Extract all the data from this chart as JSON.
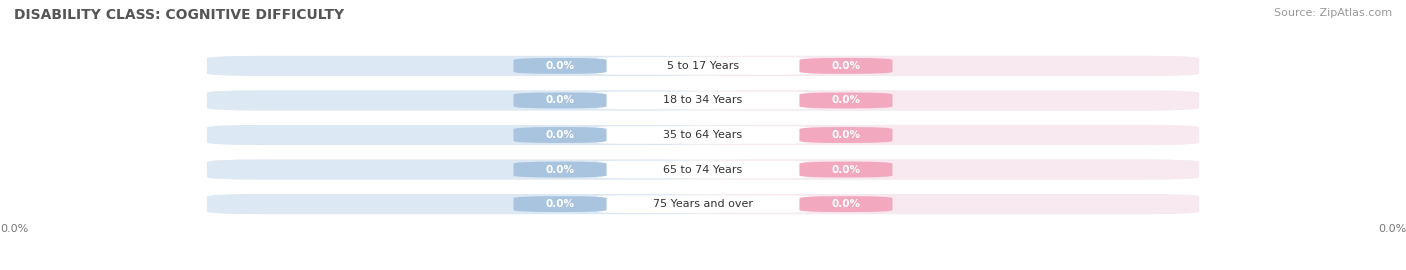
{
  "title": "DISABILITY CLASS: COGNITIVE DIFFICULTY",
  "source": "Source: ZipAtlas.com",
  "categories": [
    "5 to 17 Years",
    "18 to 34 Years",
    "35 to 64 Years",
    "65 to 74 Years",
    "75 Years and over"
  ],
  "male_values": [
    0.0,
    0.0,
    0.0,
    0.0,
    0.0
  ],
  "female_values": [
    0.0,
    0.0,
    0.0,
    0.0,
    0.0
  ],
  "male_color": "#a8c4de",
  "female_color": "#f2a8be",
  "row_bg_color": "#eeeeee",
  "row_bg_left_color": "#dce8f4",
  "row_bg_right_color": "#f8e8ef",
  "title_color": "#555555",
  "source_color": "#999999",
  "cat_label_color": "#333333",
  "axis_label_color": "#777777",
  "background_color": "#ffffff",
  "title_fontsize": 10,
  "source_fontsize": 8,
  "bar_label_fontsize": 7.5,
  "category_fontsize": 8,
  "axis_tick_fontsize": 8,
  "legend_fontsize": 8.5,
  "x_tick_label_left": "0.0%",
  "x_tick_label_right": "0.0%"
}
